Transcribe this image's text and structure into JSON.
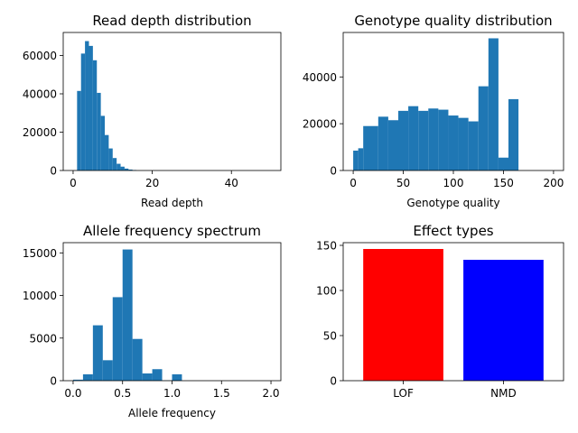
{
  "chart_data": [
    {
      "type": "bar",
      "title": "Read depth distribution",
      "xlabel": "Read depth",
      "ylabel": "",
      "xlim": [
        -2.5,
        52.5
      ],
      "ylim": [
        0,
        72000
      ],
      "xticks": [
        0,
        20,
        40
      ],
      "yticks": [
        0,
        20000,
        40000,
        60000
      ],
      "bin_width": 1,
      "bins": [
        {
          "x0": 1,
          "x1": 2,
          "count": 41500
        },
        {
          "x0": 2,
          "x1": 3,
          "count": 61000
        },
        {
          "x0": 3,
          "x1": 4,
          "count": 67500
        },
        {
          "x0": 4,
          "x1": 5,
          "count": 65000
        },
        {
          "x0": 5,
          "x1": 6,
          "count": 57500
        },
        {
          "x0": 6,
          "x1": 7,
          "count": 40500
        },
        {
          "x0": 7,
          "x1": 8,
          "count": 28500
        },
        {
          "x0": 8,
          "x1": 9,
          "count": 18500
        },
        {
          "x0": 9,
          "x1": 10,
          "count": 11500
        },
        {
          "x0": 10,
          "x1": 11,
          "count": 6500
        },
        {
          "x0": 11,
          "x1": 12,
          "count": 3500
        },
        {
          "x0": 12,
          "x1": 13,
          "count": 2000
        },
        {
          "x0": 13,
          "x1": 14,
          "count": 1000
        },
        {
          "x0": 14,
          "x1": 15,
          "count": 500
        },
        {
          "x0": 15,
          "x1": 16,
          "count": 250
        }
      ],
      "color": "#1f77b4"
    },
    {
      "type": "bar",
      "title": "Genotype quality distribution",
      "xlabel": "Genotype quality",
      "ylabel": "",
      "xlim": [
        -10,
        210
      ],
      "ylim": [
        0,
        59000
      ],
      "xticks": [
        0,
        50,
        100,
        150,
        200
      ],
      "yticks": [
        0,
        20000,
        40000
      ],
      "bins": [
        {
          "x0": 0,
          "x1": 5,
          "count": 8500
        },
        {
          "x0": 5,
          "x1": 10,
          "count": 9500
        },
        {
          "x0": 10,
          "x1": 25,
          "count": 19000
        },
        {
          "x0": 25,
          "x1": 35,
          "count": 23000
        },
        {
          "x0": 35,
          "x1": 45,
          "count": 21500
        },
        {
          "x0": 45,
          "x1": 55,
          "count": 25500
        },
        {
          "x0": 55,
          "x1": 65,
          "count": 27500
        },
        {
          "x0": 65,
          "x1": 75,
          "count": 25500
        },
        {
          "x0": 75,
          "x1": 85,
          "count": 26500
        },
        {
          "x0": 85,
          "x1": 95,
          "count": 26000
        },
        {
          "x0": 95,
          "x1": 105,
          "count": 23500
        },
        {
          "x0": 105,
          "x1": 115,
          "count": 22500
        },
        {
          "x0": 115,
          "x1": 125,
          "count": 21000
        },
        {
          "x0": 125,
          "x1": 135,
          "count": 36000
        },
        {
          "x0": 135,
          "x1": 145,
          "count": 56500
        },
        {
          "x0": 145,
          "x1": 155,
          "count": 5500
        },
        {
          "x0": 155,
          "x1": 165,
          "count": 30500
        }
      ],
      "color": "#1f77b4"
    },
    {
      "type": "bar",
      "title": "Allele frequency spectrum",
      "xlabel": "Allele frequency",
      "ylabel": "",
      "xlim": [
        -0.1,
        2.1
      ],
      "ylim": [
        0,
        16200
      ],
      "xticks": [
        0.0,
        0.5,
        1.0,
        1.5,
        2.0
      ],
      "xtick_labels": [
        "0.0",
        "0.5",
        "1.0",
        "1.5",
        "2.0"
      ],
      "yticks": [
        0,
        5000,
        10000,
        15000
      ],
      "bins": [
        {
          "x0": 0.0,
          "x1": 0.1,
          "count": 120
        },
        {
          "x0": 0.1,
          "x1": 0.2,
          "count": 750
        },
        {
          "x0": 0.2,
          "x1": 0.3,
          "count": 6500
        },
        {
          "x0": 0.3,
          "x1": 0.4,
          "count": 2400
        },
        {
          "x0": 0.4,
          "x1": 0.5,
          "count": 9800
        },
        {
          "x0": 0.5,
          "x1": 0.6,
          "count": 15400
        },
        {
          "x0": 0.6,
          "x1": 0.7,
          "count": 4900
        },
        {
          "x0": 0.7,
          "x1": 0.8,
          "count": 850
        },
        {
          "x0": 0.8,
          "x1": 0.9,
          "count": 1350
        },
        {
          "x0": 0.9,
          "x1": 1.0,
          "count": 30
        },
        {
          "x0": 1.0,
          "x1": 1.1,
          "count": 750
        }
      ],
      "color": "#1f77b4"
    },
    {
      "type": "bar",
      "title": "Effect types",
      "xlabel": "",
      "ylabel": "",
      "categories": [
        "LOF",
        "NMD"
      ],
      "values": [
        146,
        134
      ],
      "colors": [
        "#ff0000",
        "#0000ff"
      ],
      "ylim": [
        0,
        153
      ],
      "yticks": [
        0,
        50,
        100,
        150
      ]
    }
  ]
}
